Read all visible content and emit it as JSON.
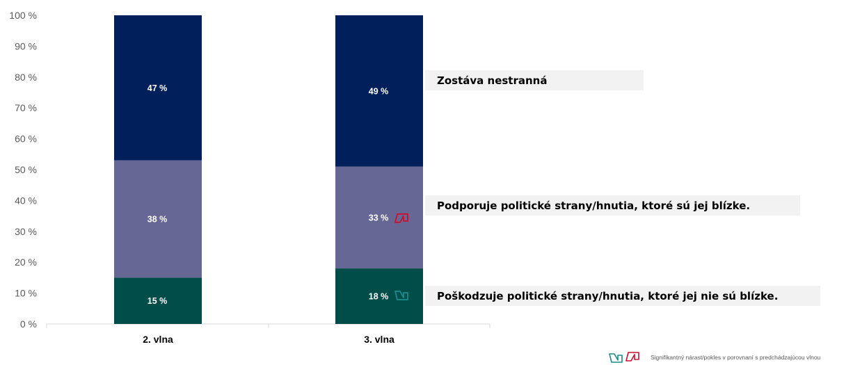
{
  "chart_data": {
    "type": "bar",
    "stacked": true,
    "categories": [
      "2. vlna",
      "3. vlna"
    ],
    "series": [
      {
        "name": "Poškodzuje politické strany/hnutia, ktoré jej nie sú blízke.",
        "values": [
          15,
          18
        ],
        "labels": [
          "15 %",
          "18 %"
        ],
        "color": "#004d4a"
      },
      {
        "name": "Podporuje politické strany/hnutia, ktoré sú jej blízke.",
        "values": [
          38,
          33
        ],
        "labels": [
          "38 %",
          "33 %"
        ],
        "color": "#676795"
      },
      {
        "name": "Zostáva nestranná",
        "values": [
          47,
          49
        ],
        "labels": [
          "47 %",
          "49 %"
        ],
        "color": "#001f5b"
      }
    ],
    "yticks": [
      "0 %",
      "10 %",
      "20 %",
      "30 %",
      "40 %",
      "50 %",
      "60 %",
      "70 %",
      "80 %",
      "90 %",
      "100 %"
    ],
    "ylim": [
      0,
      100
    ],
    "legend_placement": "right",
    "significance_markers": [
      {
        "category": "3. vlna",
        "series": "Podporuje politické strany/hnutia, ktoré sú jej blízke.",
        "direction": "decrease",
        "color": "#c8102e"
      },
      {
        "category": "3. vlna",
        "series": "Poškodzuje politické strany/hnutia, ktoré jej nie sú blízke.",
        "direction": "increase",
        "color": "#1a8a8a"
      }
    ]
  },
  "footnote": {
    "text": "Signifikantný nárast/pokles v porovnaní s predchádzajúcou vlnou",
    "increase_icon": "arrow-increase-icon",
    "decrease_icon": "arrow-decrease-icon",
    "increase_color": "#1a8a8a",
    "decrease_color": "#c8102e"
  }
}
